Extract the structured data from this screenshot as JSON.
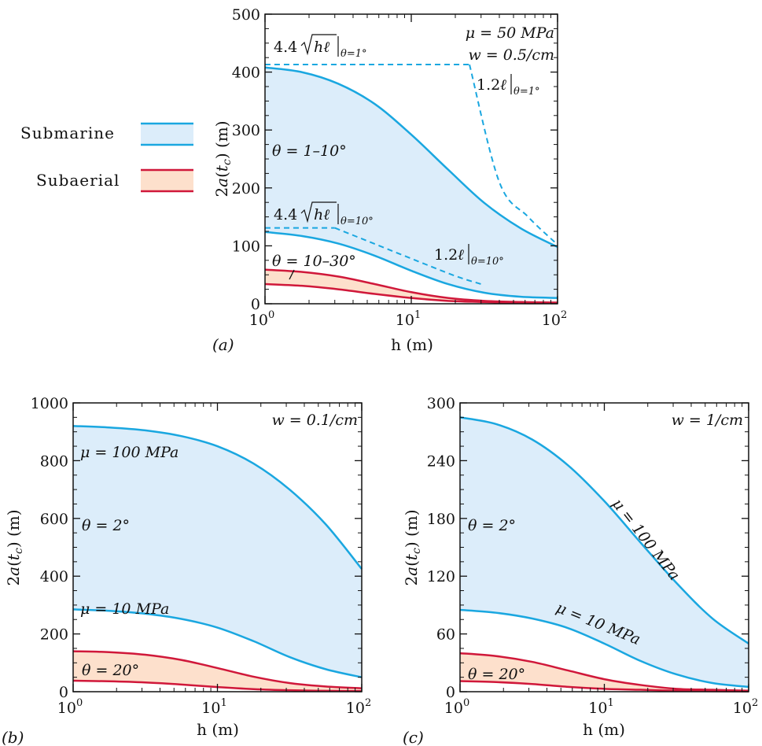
{
  "colors": {
    "submarine_line": "#1aa7e0",
    "submarine_fill": "#dcedfa",
    "subaerial_line": "#d0183a",
    "subaerial_fill": "#fde0cc",
    "dashed": "#1aa7e0"
  },
  "legend": {
    "items": [
      {
        "label": "Submarine",
        "kind": "submarine"
      },
      {
        "label": "Subaerial",
        "kind": "subaerial"
      }
    ]
  },
  "chart_data": [
    {
      "type": "area",
      "panel_label": "(a)",
      "xlabel": "h (m)",
      "ylabel": "2a(t_c) (m)",
      "xscale": "log",
      "xlim": [
        1,
        100
      ],
      "ylim": [
        0,
        500
      ],
      "xticks": [
        "10^0",
        "10^1",
        "10^2"
      ],
      "yticks": [
        "0",
        "100",
        "200",
        "300",
        "400",
        "500"
      ],
      "annotations": [
        "μ = 50 MPa",
        "w = 0.5/cm",
        "4.4√(hℓ)|θ=1°",
        "1.2ℓ|θ=1°",
        "θ = 1–10°",
        "4.4√(hℓ)|θ=10°",
        "1.2ℓ|θ=10°",
        "θ = 10–30°"
      ],
      "x": [
        1,
        1.78,
        3.16,
        5.62,
        10,
        17.8,
        31.6,
        56.2,
        100
      ],
      "series": [
        {
          "role": "submarine-upper",
          "values": [
            408,
            400,
            380,
            345,
            292,
            232,
            174,
            130,
            98
          ]
        },
        {
          "role": "submarine-lower",
          "values": [
            124,
            117,
            104,
            83,
            57,
            34,
            19,
            12,
            10
          ]
        },
        {
          "role": "subaerial-upper",
          "values": [
            59,
            55,
            47,
            34,
            20,
            10,
            5,
            3,
            2
          ]
        },
        {
          "role": "subaerial-lower",
          "values": [
            34,
            31,
            25,
            17,
            10,
            5,
            3,
            1,
            1
          ]
        }
      ],
      "dashed": [
        {
          "role": "asymptote-theta1-flat",
          "x": [
            1,
            25
          ],
          "values": [
            413,
            413
          ]
        },
        {
          "role": "asymptote-theta1-tail",
          "x": [
            25,
            40,
            63,
            100
          ],
          "values": [
            413,
            210,
            150,
            102
          ]
        },
        {
          "role": "asymptote-theta10-flat",
          "x": [
            1,
            3
          ],
          "values": [
            131,
            131
          ]
        },
        {
          "role": "asymptote-theta10-tail",
          "x": [
            3,
            10,
            20,
            30
          ],
          "values": [
            131,
            78,
            48,
            34
          ]
        }
      ]
    },
    {
      "type": "area",
      "panel_label": "(b)",
      "xlabel": "h (m)",
      "ylabel": "2a(t_c) (m)",
      "xscale": "log",
      "xlim": [
        1,
        100
      ],
      "ylim": [
        0,
        1000
      ],
      "xticks": [
        "10^0",
        "10^1",
        "10^2"
      ],
      "yticks": [
        "0",
        "200",
        "400",
        "600",
        "800",
        "1000"
      ],
      "annotations": [
        "w = 0.1/cm",
        "μ = 100 MPa",
        "θ = 2°",
        "μ = 10 MPa",
        "θ = 20°"
      ],
      "x": [
        1,
        1.78,
        3.16,
        5.62,
        10,
        17.8,
        31.6,
        56.2,
        100
      ],
      "series": [
        {
          "role": "submarine-upper",
          "values": [
            920,
            915,
            905,
            885,
            850,
            790,
            700,
            580,
            425
          ]
        },
        {
          "role": "submarine-lower",
          "values": [
            285,
            280,
            270,
            252,
            222,
            175,
            120,
            78,
            50
          ]
        },
        {
          "role": "subaerial-upper",
          "values": [
            140,
            137,
            128,
            110,
            82,
            52,
            30,
            18,
            12
          ]
        },
        {
          "role": "subaerial-lower",
          "values": [
            38,
            36,
            32,
            25,
            16,
            9,
            5,
            3,
            2
          ]
        }
      ]
    },
    {
      "type": "area",
      "panel_label": "(c)",
      "xlabel": "h (m)",
      "ylabel": "2a(t_c) (m)",
      "xscale": "log",
      "xlim": [
        1,
        100
      ],
      "ylim": [
        0,
        300
      ],
      "xticks": [
        "10^0",
        "10^1",
        "10^2"
      ],
      "yticks": [
        "0",
        "60",
        "120",
        "180",
        "240",
        "300"
      ],
      "annotations": [
        "w = 1/cm",
        "μ = 100 MPa",
        "θ = 2°",
        "μ = 10 MPa",
        "θ = 20°"
      ],
      "x": [
        1,
        1.78,
        3.16,
        5.62,
        10,
        17.8,
        31.6,
        56.2,
        100
      ],
      "series": [
        {
          "role": "submarine-upper",
          "values": [
            285,
            278,
            262,
            235,
            198,
            155,
            113,
            76,
            50
          ]
        },
        {
          "role": "submarine-lower",
          "values": [
            85,
            82,
            76,
            66,
            50,
            32,
            18,
            9,
            5
          ]
        },
        {
          "role": "subaerial-upper",
          "values": [
            40,
            37,
            31,
            22,
            13,
            7,
            3,
            2,
            1
          ]
        },
        {
          "role": "subaerial-lower",
          "values": [
            11,
            10,
            8,
            5,
            3,
            2,
            1,
            0.5,
            0.3
          ]
        }
      ]
    }
  ]
}
